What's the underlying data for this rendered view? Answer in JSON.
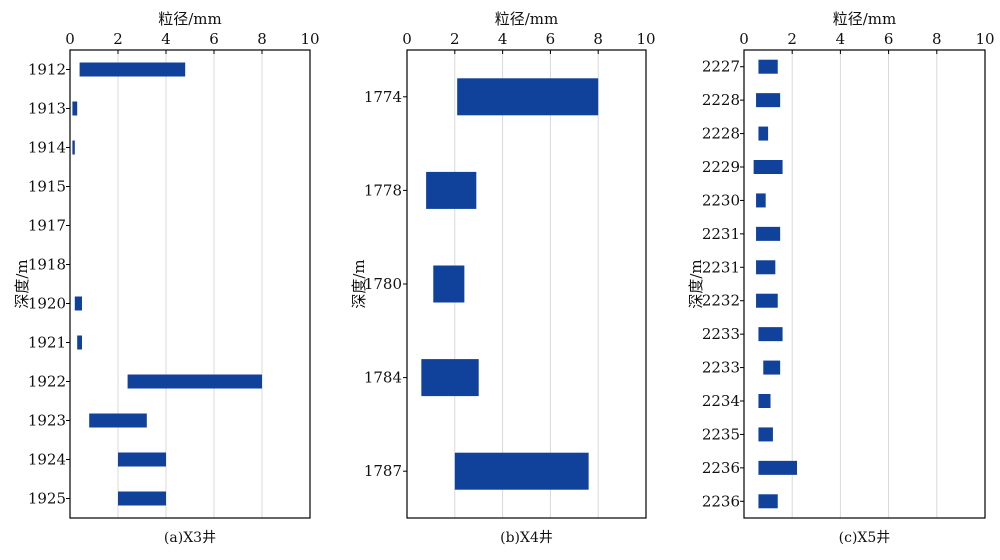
{
  "chart_data": [
    {
      "type": "bar",
      "orientation": "horizontal-range",
      "xlabel": "粒径/mm",
      "ylabel": "深度/m",
      "caption": "(a)X3井",
      "xlim": [
        0,
        10
      ],
      "xticks": [
        "0",
        "2",
        "4",
        "6",
        "8",
        "10"
      ],
      "grid": "vertical",
      "bar_color": "#10419B",
      "categories": [
        "1912",
        "1913",
        "1914",
        "1915",
        "1917",
        "1918",
        "1920",
        "1921",
        "1922",
        "1923",
        "1924",
        "1925"
      ],
      "ranges": [
        [
          0.4,
          4.8
        ],
        [
          0.1,
          0.3
        ],
        [
          0.1,
          0.2
        ],
        null,
        null,
        null,
        [
          0.2,
          0.5
        ],
        [
          0.3,
          0.5
        ],
        [
          2.4,
          8.0
        ],
        [
          0.8,
          3.2
        ],
        [
          2.0,
          4.0
        ],
        [
          2.0,
          4.0
        ]
      ]
    },
    {
      "type": "bar",
      "orientation": "horizontal-range",
      "xlabel": "粒径/mm",
      "ylabel": "深度/m",
      "caption": "(b)X4井",
      "xlim": [
        0,
        10
      ],
      "xticks": [
        "0",
        "2",
        "4",
        "6",
        "8",
        "10"
      ],
      "grid": "vertical",
      "bar_color": "#10419B",
      "categories": [
        "1774",
        "1778",
        "1780",
        "1784",
        "1787"
      ],
      "ranges": [
        [
          2.1,
          8.0
        ],
        [
          0.8,
          2.9
        ],
        [
          1.1,
          2.4
        ],
        [
          0.6,
          3.0
        ],
        [
          2.0,
          7.6
        ]
      ]
    },
    {
      "type": "bar",
      "orientation": "horizontal-range",
      "xlabel": "粒径/mm",
      "ylabel": "深度/m",
      "caption": "(c)X5井",
      "xlim": [
        0,
        10
      ],
      "xticks": [
        "0",
        "2",
        "4",
        "6",
        "8",
        "10"
      ],
      "grid": "vertical",
      "bar_color": "#10419B",
      "categories": [
        "2227",
        "2228",
        "2228",
        "2229",
        "2230",
        "2231",
        "2231",
        "2232",
        "2233",
        "2233",
        "2234",
        "2235",
        "2236",
        "2236"
      ],
      "ranges": [
        [
          0.6,
          1.4
        ],
        [
          0.5,
          1.5
        ],
        [
          0.6,
          1.0
        ],
        [
          0.4,
          1.6
        ],
        [
          0.5,
          0.9
        ],
        [
          0.5,
          1.5
        ],
        [
          0.5,
          1.3
        ],
        [
          0.5,
          1.4
        ],
        [
          0.6,
          1.6
        ],
        [
          0.8,
          1.5
        ],
        [
          0.6,
          1.1
        ],
        [
          0.6,
          1.2
        ],
        [
          0.6,
          2.2
        ],
        [
          0.6,
          1.4
        ]
      ]
    }
  ]
}
